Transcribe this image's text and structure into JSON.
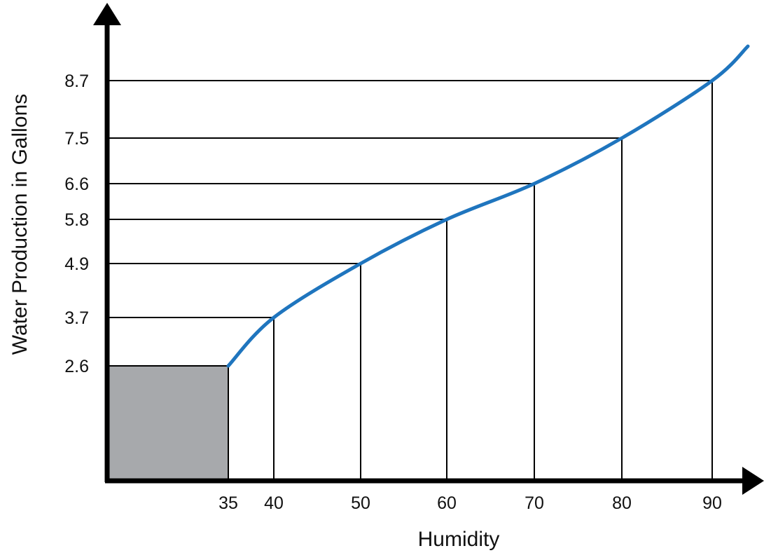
{
  "chart_data": {
    "type": "line",
    "xlabel": "Humidity",
    "ylabel": "Water Production in Gallons",
    "xticks": [
      "35",
      "40",
      "50",
      "60",
      "70",
      "80",
      "90"
    ],
    "yticks": [
      "2.6",
      "3.7",
      "4.9",
      "5.8",
      "6.6",
      "7.5",
      "8.7"
    ],
    "points": [
      {
        "x": 35,
        "y": 2.6
      },
      {
        "x": 40,
        "y": 3.7
      },
      {
        "x": 50,
        "y": 4.9
      },
      {
        "x": 60,
        "y": 5.8
      },
      {
        "x": 70,
        "y": 6.6
      },
      {
        "x": 80,
        "y": 7.5
      },
      {
        "x": 90,
        "y": 8.7
      }
    ],
    "shaded_region": {
      "x": [
        0,
        35
      ],
      "y": [
        0,
        2.6
      ]
    },
    "grid": "drop lines from each labeled point to both axes",
    "colors": {
      "line": "#1f75be",
      "shade": "#a7a9ac",
      "axis": "#000000",
      "guides": "#000000"
    }
  }
}
